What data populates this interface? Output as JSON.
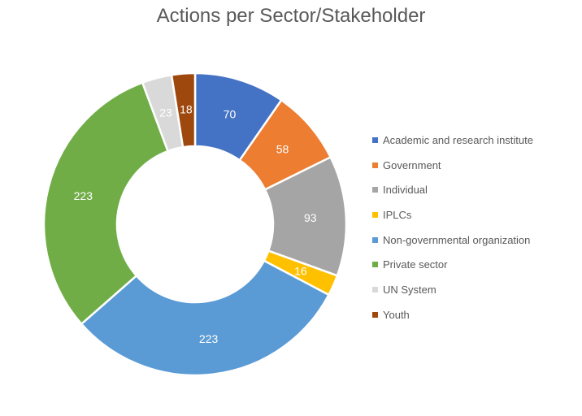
{
  "chart_data": {
    "type": "pie",
    "subtype": "donut",
    "title": "Actions per Sector/Stakeholder",
    "legend_position": "right",
    "start_angle": "top",
    "direction": "clockwise",
    "categories": [
      "Academic and research institute",
      "Government",
      "Individual",
      "IPLCs",
      "Non-governmental organization",
      "Private sector",
      "UN System",
      "Youth"
    ],
    "values": [
      70,
      58,
      93,
      16,
      223,
      223,
      23,
      18
    ],
    "data_labels": [
      "70",
      "58",
      "93",
      "16",
      "223",
      "223",
      "23",
      "18"
    ],
    "colors": [
      "#4472C4",
      "#ED7D31",
      "#A5A5A5",
      "#FFC000",
      "#5B9BD5",
      "#70AD47",
      "#D9D9D9",
      "#9E480E"
    ]
  }
}
